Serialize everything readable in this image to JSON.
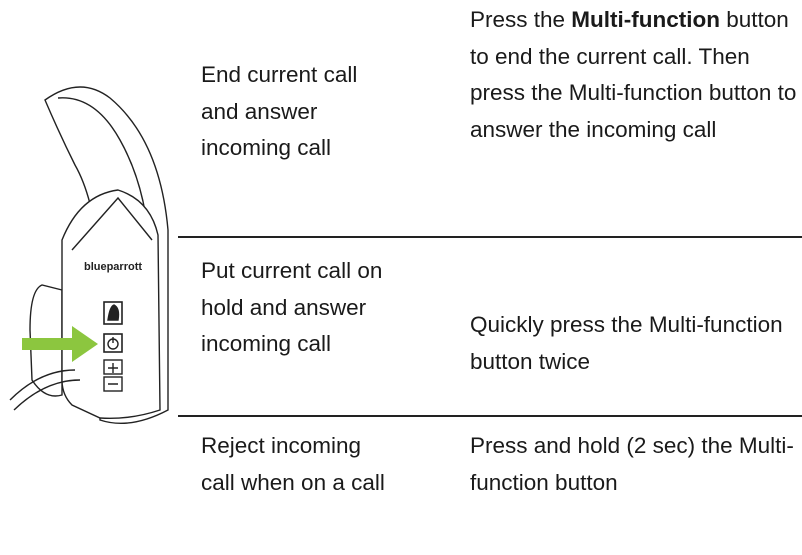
{
  "illustration": {
    "brand": "blueparrott"
  },
  "table": {
    "rows": [
      {
        "action": "End current call and answer incoming call",
        "instruction": {
          "before": "Press the ",
          "bold": "Multi-function",
          "after": " button to end the current call. Then press the Multi-function button to answer the incoming call"
        }
      },
      {
        "action": "Put current call on hold and answer incoming call",
        "instruction": "Quickly press the Multi-function button twice"
      },
      {
        "action": "Reject incoming call when on a call",
        "instruction": "Press and hold (2 sec) the Multi-function button"
      }
    ]
  }
}
